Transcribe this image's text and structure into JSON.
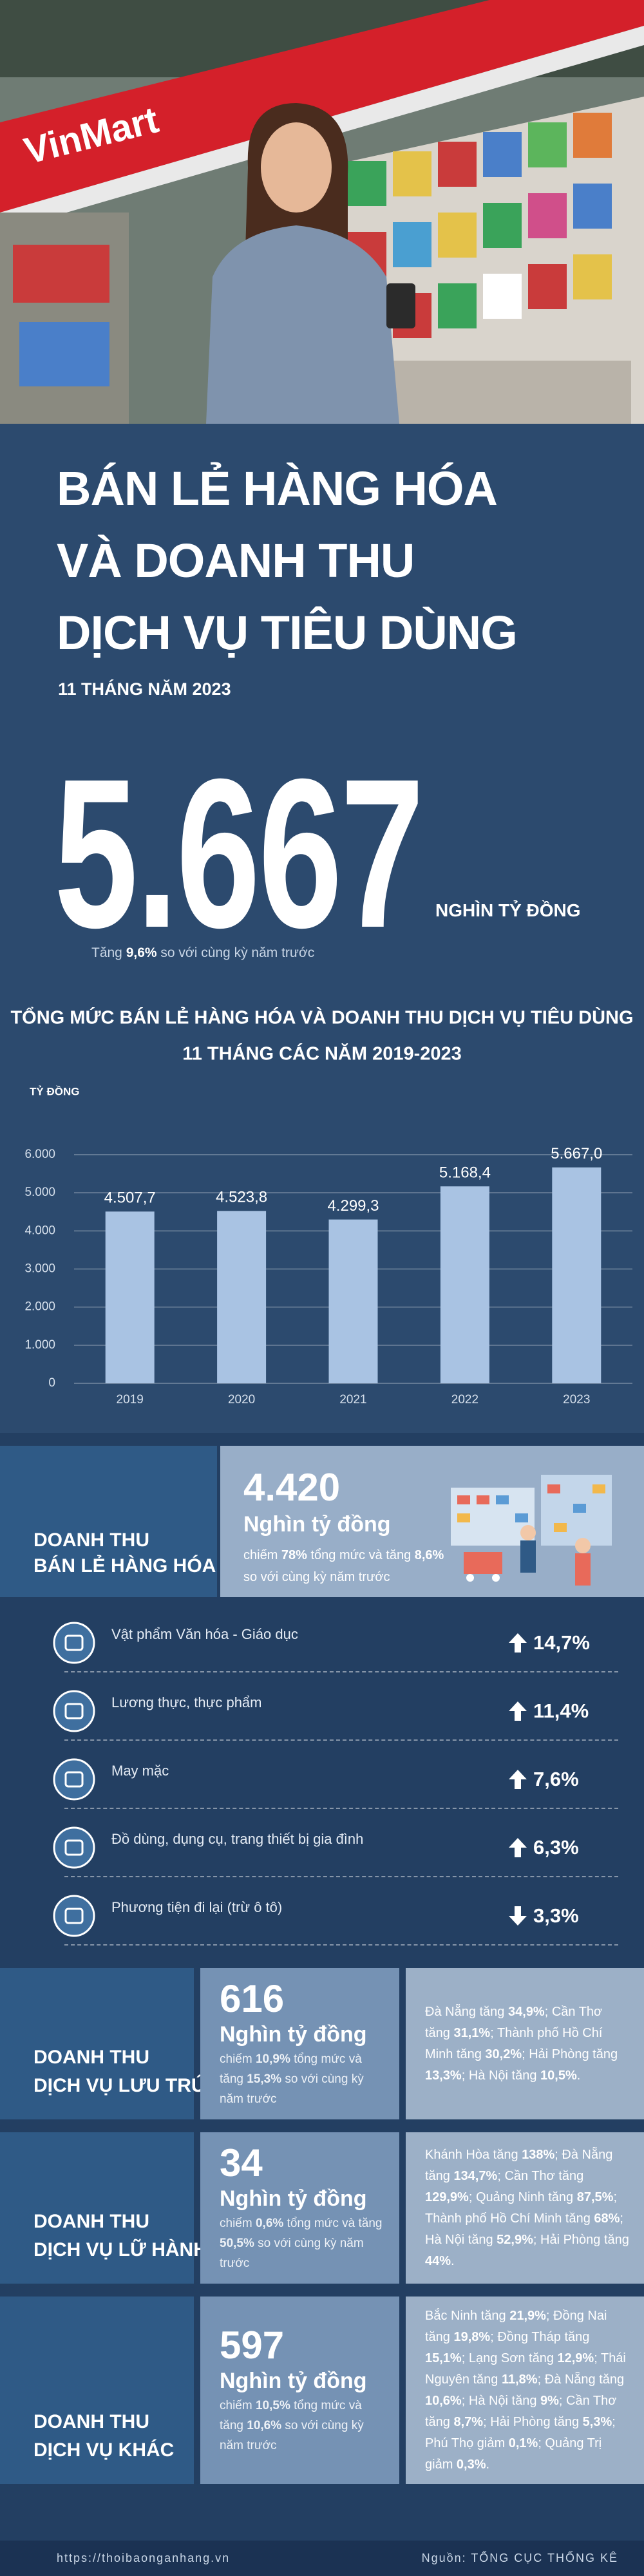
{
  "photo": {
    "sign": "VinMart"
  },
  "header": {
    "title": [
      "BÁN LẺ HÀNG HÓA",
      "VÀ DOANH THU",
      "DỊCH VỤ TIÊU DÙNG"
    ],
    "period": "11 THÁNG NĂM 2023"
  },
  "highlight": {
    "value": "5.667",
    "unit": "NGHÌN TỶ ĐỒNG",
    "note": [
      "Tăng ",
      "9,6%",
      " so với cùng kỳ năm trước"
    ]
  },
  "chart_data": {
    "type": "bar",
    "title": "TỔNG MỨC BÁN LẺ HÀNG HÓA VÀ DOANH THU DỊCH VỤ TIÊU DÙNG",
    "subtitle": "11 THÁNG CÁC NĂM 2019-2023",
    "y_label": "TỶ ĐỒNG",
    "categories": [
      "2019",
      "2020",
      "2021",
      "2022",
      "2023"
    ],
    "values": [
      4507.7,
      4523.8,
      4299.3,
      5168.4,
      5667.0
    ],
    "value_labels": [
      "4.507,7",
      "4.523,8",
      "4.299,3",
      "5.168,4",
      "5.667,0"
    ],
    "color": "#a9c3e3",
    "ylim": [
      0,
      6000
    ],
    "yticks": [
      0,
      {
        "value": 1000,
        "label": "1.000"
      },
      {
        "value": 2000,
        "label": "2.000"
      },
      {
        "value": 3000,
        "label": "3.000"
      },
      {
        "value": 4000,
        "label": "4.000"
      },
      {
        "value": 5000,
        "label": "5.000"
      },
      {
        "value": 6000,
        "label": "6.000"
      }
    ],
    "grid": true
  },
  "retail": {
    "label": [
      "DOANH THU",
      "BÁN LẺ HÀNG HÓA"
    ],
    "value": "4.420",
    "unit": "Nghìn tỷ đồng",
    "note": [
      "chiếm ",
      "78%",
      " tổng mức và tăng ",
      "8,6%",
      " so với cùng kỳ năm trước"
    ],
    "items": [
      {
        "name": "Vật phẩm Văn hóa - Giáo dục",
        "change": "14,7%",
        "direction": "up"
      },
      {
        "name": "Lương thực, thực phẩm",
        "change": "11,4%",
        "direction": "up"
      },
      {
        "name": "May mặc",
        "change": "7,6%",
        "direction": "up"
      },
      {
        "name": "Đồ dùng, dụng cụ, trang thiết bị gia đình",
        "change": "6,3%",
        "direction": "up"
      },
      {
        "name": "Phương tiện đi lại (trừ ô tô)",
        "change": "3,3%",
        "direction": "down"
      }
    ]
  },
  "services": [
    {
      "label": [
        "DOANH THU",
        "DỊCH VỤ LƯU TRÚ"
      ],
      "value": "616",
      "unit": "Nghìn tỷ đồng",
      "note": [
        "chiếm ",
        "10,9%",
        " tổng mức và tăng ",
        "15,3%",
        " so với cùng kỳ năm trước"
      ],
      "detail": [
        "Đà Nẵng tăng ",
        "34,9%",
        "; Cần Thơ tăng ",
        "31,1%",
        "; Thành phố Hồ Chí Minh tăng ",
        "30,2%",
        "; Hải Phòng tăng ",
        "13,3%",
        "; Hà Nội tăng ",
        "10,5%",
        "."
      ]
    },
    {
      "label": [
        "DOANH THU",
        "DỊCH VỤ LỮ HÀNH"
      ],
      "value": "34",
      "unit": "Nghìn tỷ đồng",
      "note": [
        "chiếm ",
        "0,6%",
        " tổng mức và tăng ",
        "50,5%",
        " so với cùng kỳ năm trước"
      ],
      "detail": [
        "Khánh Hòa tăng ",
        "138%",
        "; Đà Nẵng tăng ",
        "134,7%",
        "; Cần Thơ tăng ",
        "129,9%",
        "; Quảng Ninh tăng ",
        "87,5%",
        "; Thành phố Hồ Chí Minh tăng ",
        "68%",
        "; Hà Nội tăng ",
        "52,9%",
        "; Hải Phòng tăng ",
        "44%",
        "."
      ]
    },
    {
      "label": [
        "DOANH THU",
        "DỊCH VỤ KHÁC"
      ],
      "value": "597",
      "unit": "Nghìn tỷ đồng",
      "note": [
        "chiếm ",
        "10,5%",
        " tổng mức và tăng ",
        "10,6%",
        " so với cùng kỳ năm trước"
      ],
      "detail": [
        "Bắc Ninh tăng ",
        "21,9%",
        "; Đồng Nai tăng ",
        "19,8%",
        "; Đồng Tháp tăng ",
        "15,1%",
        "; Lạng Sơn tăng ",
        "12,9%",
        "; Thái Nguyên tăng ",
        "11,8%",
        "; Đà Nẵng tăng ",
        "10,6%",
        "; Hà Nội tăng ",
        "9%",
        "; Cần Thơ tăng ",
        "8,7%",
        "; Hải Phòng tăng ",
        "5,3%",
        "; Phú Thọ giảm ",
        "0,1%",
        "; Quảng Trị giảm ",
        "0,3%",
        "."
      ]
    }
  ],
  "footer": {
    "url": "https://thoibaonganhang.vn",
    "source": "Nguồn: TỔNG CỤC THỐNG KÊ"
  }
}
